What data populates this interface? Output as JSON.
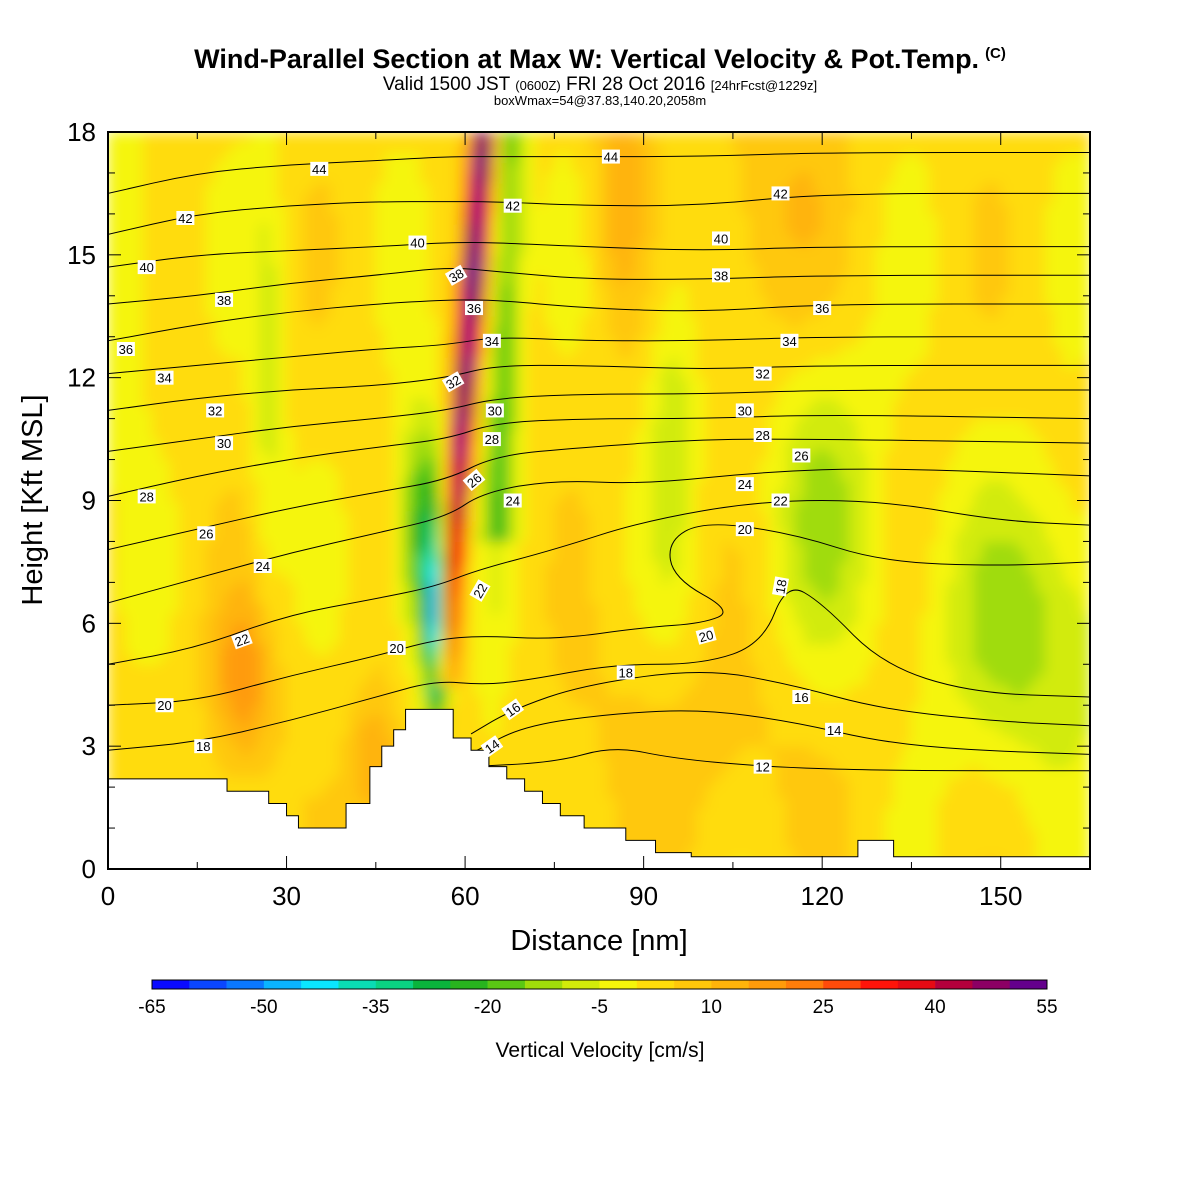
{
  "header": {
    "title": "Wind-Parallel Section at Max W: Vertical Velocity & Pot.Temp.",
    "title_mark": "(C)",
    "valid_prefix": "Valid 1500 JST",
    "valid_zulu": "(0600Z)",
    "valid_date": "FRI 28 Oct 2016",
    "forecast": "[24hrFcst@1229z]",
    "box_info": "boxWmax=54@37.83,140.20,2058m"
  },
  "chart_data": {
    "type": "heatmap",
    "xlabel": "Distance [nm]",
    "ylabel": "Height [Kft MSL]",
    "xlim": [
      0,
      165
    ],
    "ylim": [
      0,
      18
    ],
    "x_ticks": [
      0,
      30,
      60,
      90,
      120,
      150
    ],
    "y_ticks": [
      0,
      3,
      6,
      9,
      12,
      15,
      18
    ],
    "colorbar": {
      "title": "Vertical Velocity [cm/s]",
      "min": -65,
      "max": 55,
      "step": 5,
      "labels": [
        -65,
        -50,
        -35,
        -20,
        -5,
        10,
        25,
        40,
        55
      ],
      "colors": [
        "#0a0aff",
        "#0a46ff",
        "#0a78ff",
        "#0ab4ff",
        "#0ae6ff",
        "#0adcb4",
        "#0ad282",
        "#0ab43c",
        "#28b41e",
        "#5ac814",
        "#a0dc0a",
        "#d2eb0a",
        "#f5f50a",
        "#ffdc0a",
        "#ffc80a",
        "#ffb40a",
        "#ff9b0a",
        "#ff7d0a",
        "#ff4b0a",
        "#ff140a",
        "#e60a14",
        "#b4003c",
        "#8c0064",
        "#64008c"
      ]
    },
    "terrain": [
      [
        0,
        2.2
      ],
      [
        20,
        2.2
      ],
      [
        20,
        1.9
      ],
      [
        27,
        1.9
      ],
      [
        27,
        1.6
      ],
      [
        30,
        1.6
      ],
      [
        30,
        1.3
      ],
      [
        32,
        1.3
      ],
      [
        32,
        1.0
      ],
      [
        40,
        1.0
      ],
      [
        40,
        1.6
      ],
      [
        44,
        1.6
      ],
      [
        44,
        2.5
      ],
      [
        46,
        2.5
      ],
      [
        46,
        3.0
      ],
      [
        48,
        3.0
      ],
      [
        48,
        3.4
      ],
      [
        50,
        3.4
      ],
      [
        50,
        3.9
      ],
      [
        58,
        3.9
      ],
      [
        58,
        3.2
      ],
      [
        61,
        3.2
      ],
      [
        61,
        2.9
      ],
      [
        64,
        2.9
      ],
      [
        64,
        2.5
      ],
      [
        67,
        2.5
      ],
      [
        67,
        2.2
      ],
      [
        70,
        2.2
      ],
      [
        70,
        1.9
      ],
      [
        73,
        1.9
      ],
      [
        73,
        1.6
      ],
      [
        76,
        1.6
      ],
      [
        76,
        1.3
      ],
      [
        80,
        1.3
      ],
      [
        80,
        1.0
      ],
      [
        87,
        1.0
      ],
      [
        87,
        0.7
      ],
      [
        92,
        0.7
      ],
      [
        92,
        0.4
      ],
      [
        98,
        0.4
      ],
      [
        98,
        0.3
      ],
      [
        126,
        0.3
      ],
      [
        126,
        0.7
      ],
      [
        132,
        0.7
      ],
      [
        132,
        0.3
      ],
      [
        165,
        0.3
      ]
    ],
    "theta_contours": [
      {
        "label": "12",
        "points": [
          [
            45,
            2.3
          ],
          [
            60,
            2.5
          ],
          [
            75,
            2.6
          ],
          [
            85,
            3.0
          ],
          [
            95,
            2.7
          ],
          [
            110,
            2.5
          ],
          [
            130,
            2.4
          ],
          [
            165,
            2.4
          ]
        ]
      },
      {
        "label": "14",
        "points": [
          [
            62,
            2.9
          ],
          [
            70,
            3.5
          ],
          [
            85,
            3.8
          ],
          [
            100,
            3.9
          ],
          [
            115,
            3.6
          ],
          [
            130,
            3.1
          ],
          [
            145,
            2.9
          ],
          [
            165,
            2.8
          ]
        ]
      },
      {
        "label": "16",
        "points": [
          [
            61,
            3.3
          ],
          [
            68,
            3.9
          ],
          [
            80,
            4.5
          ],
          [
            100,
            4.9
          ],
          [
            115,
            4.5
          ],
          [
            130,
            3.9
          ],
          [
            150,
            3.6
          ],
          [
            165,
            3.5
          ]
        ]
      },
      {
        "label": "18",
        "points": [
          [
            0,
            2.9
          ],
          [
            15,
            3.1
          ],
          [
            30,
            3.6
          ],
          [
            45,
            4.2
          ],
          [
            55,
            4.6
          ],
          [
            63,
            4.5
          ],
          [
            70,
            4.6
          ],
          [
            85,
            5.0
          ],
          [
            100,
            5.0
          ],
          [
            110,
            5.5
          ],
          [
            114,
            7.0
          ],
          [
            120,
            6.5
          ],
          [
            130,
            5.0
          ],
          [
            145,
            4.3
          ],
          [
            165,
            4.2
          ]
        ]
      },
      {
        "label": "20",
        "points": [
          [
            0,
            4.0
          ],
          [
            15,
            4.1
          ],
          [
            30,
            4.7
          ],
          [
            45,
            5.2
          ],
          [
            55,
            5.6
          ],
          [
            63,
            5.7
          ],
          [
            75,
            5.6
          ],
          [
            90,
            5.9
          ],
          [
            100,
            6.0
          ],
          [
            105,
            6.3
          ],
          [
            95,
            7.1
          ],
          [
            94,
            8.0
          ],
          [
            100,
            8.5
          ],
          [
            115,
            8.2
          ],
          [
            130,
            7.5
          ],
          [
            150,
            7.4
          ],
          [
            165,
            7.5
          ]
        ]
      },
      {
        "label": "22",
        "points": [
          [
            0,
            5.0
          ],
          [
            15,
            5.4
          ],
          [
            30,
            6.2
          ],
          [
            45,
            6.6
          ],
          [
            55,
            6.9
          ],
          [
            62,
            7.3
          ],
          [
            75,
            7.8
          ],
          [
            90,
            8.5
          ],
          [
            110,
            9.0
          ],
          [
            130,
            9.0
          ],
          [
            150,
            8.5
          ],
          [
            165,
            8.4
          ]
        ]
      },
      {
        "label": "24",
        "points": [
          [
            0,
            6.5
          ],
          [
            15,
            7.1
          ],
          [
            30,
            7.7
          ],
          [
            45,
            8.2
          ],
          [
            57,
            8.6
          ],
          [
            63,
            9.2
          ],
          [
            75,
            9.5
          ],
          [
            90,
            9.4
          ],
          [
            110,
            9.7
          ],
          [
            130,
            9.8
          ],
          [
            165,
            9.6
          ]
        ]
      },
      {
        "label": "26",
        "points": [
          [
            0,
            7.8
          ],
          [
            15,
            8.3
          ],
          [
            30,
            8.8
          ],
          [
            45,
            9.2
          ],
          [
            57,
            9.5
          ],
          [
            65,
            10.1
          ],
          [
            80,
            10.3
          ],
          [
            100,
            10.5
          ],
          [
            120,
            10.5
          ],
          [
            165,
            10.4
          ]
        ]
      },
      {
        "label": "28",
        "points": [
          [
            0,
            9.1
          ],
          [
            15,
            9.6
          ],
          [
            30,
            10.0
          ],
          [
            45,
            10.3
          ],
          [
            57,
            10.5
          ],
          [
            65,
            10.9
          ],
          [
            80,
            11.0
          ],
          [
            100,
            11.0
          ],
          [
            120,
            11.1
          ],
          [
            165,
            11.0
          ]
        ]
      },
      {
        "label": "30",
        "points": [
          [
            0,
            10.2
          ],
          [
            15,
            10.5
          ],
          [
            30,
            10.8
          ],
          [
            45,
            11.0
          ],
          [
            57,
            11.2
          ],
          [
            65,
            11.5
          ],
          [
            80,
            11.6
          ],
          [
            100,
            11.6
          ],
          [
            120,
            11.7
          ],
          [
            165,
            11.7
          ]
        ]
      },
      {
        "label": "32",
        "points": [
          [
            0,
            11.2
          ],
          [
            15,
            11.5
          ],
          [
            30,
            11.7
          ],
          [
            45,
            11.8
          ],
          [
            57,
            12.0
          ],
          [
            65,
            12.3
          ],
          [
            80,
            12.3
          ],
          [
            100,
            12.2
          ],
          [
            120,
            12.3
          ],
          [
            165,
            12.3
          ]
        ]
      },
      {
        "label": "34",
        "points": [
          [
            0,
            12.1
          ],
          [
            15,
            12.3
          ],
          [
            30,
            12.5
          ],
          [
            45,
            12.7
          ],
          [
            57,
            12.8
          ],
          [
            65,
            13.0
          ],
          [
            80,
            12.9
          ],
          [
            100,
            12.9
          ],
          [
            120,
            13.0
          ],
          [
            165,
            13.0
          ]
        ]
      },
      {
        "label": "36",
        "points": [
          [
            0,
            12.9
          ],
          [
            15,
            13.3
          ],
          [
            30,
            13.6
          ],
          [
            45,
            13.8
          ],
          [
            57,
            13.9
          ],
          [
            65,
            13.9
          ],
          [
            80,
            13.7
          ],
          [
            100,
            13.6
          ],
          [
            120,
            13.8
          ],
          [
            165,
            13.8
          ]
        ]
      },
      {
        "label": "38",
        "points": [
          [
            0,
            13.8
          ],
          [
            15,
            14.0
          ],
          [
            30,
            14.3
          ],
          [
            45,
            14.5
          ],
          [
            57,
            14.7
          ],
          [
            65,
            14.6
          ],
          [
            80,
            14.4
          ],
          [
            100,
            14.4
          ],
          [
            120,
            14.5
          ],
          [
            165,
            14.5
          ]
        ]
      },
      {
        "label": "40",
        "points": [
          [
            0,
            14.7
          ],
          [
            15,
            15.0
          ],
          [
            30,
            15.1
          ],
          [
            45,
            15.2
          ],
          [
            57,
            15.3
          ],
          [
            65,
            15.3
          ],
          [
            80,
            15.2
          ],
          [
            100,
            15.1
          ],
          [
            120,
            15.2
          ],
          [
            165,
            15.2
          ]
        ]
      },
      {
        "label": "42",
        "points": [
          [
            0,
            15.5
          ],
          [
            15,
            16.0
          ],
          [
            30,
            16.2
          ],
          [
            45,
            16.3
          ],
          [
            57,
            16.3
          ],
          [
            65,
            16.3
          ],
          [
            80,
            16.2
          ],
          [
            100,
            16.2
          ],
          [
            120,
            16.5
          ],
          [
            165,
            16.5
          ]
        ]
      },
      {
        "label": "44",
        "points": [
          [
            0,
            16.5
          ],
          [
            15,
            17.0
          ],
          [
            30,
            17.2
          ],
          [
            45,
            17.3
          ],
          [
            57,
            17.4
          ],
          [
            65,
            17.4
          ],
          [
            80,
            17.4
          ],
          [
            100,
            17.4
          ],
          [
            120,
            17.5
          ],
          [
            165,
            17.5
          ]
        ]
      }
    ],
    "contour_labels": [
      {
        "text": "44",
        "x": 35.5,
        "y": 17.1,
        "rot": 0
      },
      {
        "text": "44",
        "x": 84.5,
        "y": 17.4,
        "rot": 0
      },
      {
        "text": "42",
        "x": 13,
        "y": 15.9,
        "rot": 0
      },
      {
        "text": "42",
        "x": 68,
        "y": 16.2,
        "rot": 0
      },
      {
        "text": "42",
        "x": 113,
        "y": 16.5,
        "rot": 0
      },
      {
        "text": "40",
        "x": 6.5,
        "y": 14.7,
        "rot": 0
      },
      {
        "text": "40",
        "x": 52,
        "y": 15.3,
        "rot": 0
      },
      {
        "text": "40",
        "x": 103,
        "y": 15.4,
        "rot": 0
      },
      {
        "text": "38",
        "x": 19.5,
        "y": 13.9,
        "rot": 0
      },
      {
        "text": "38",
        "x": 58.5,
        "y": 14.5,
        "rot": -30
      },
      {
        "text": "38",
        "x": 103,
        "y": 14.5,
        "rot": 0
      },
      {
        "text": "36",
        "x": 3,
        "y": 12.7,
        "rot": 0
      },
      {
        "text": "36",
        "x": 61.5,
        "y": 13.7,
        "rot": 0
      },
      {
        "text": "36",
        "x": 120,
        "y": 13.7,
        "rot": 0
      },
      {
        "text": "34",
        "x": 9.5,
        "y": 12.0,
        "rot": 0
      },
      {
        "text": "34",
        "x": 64.5,
        "y": 12.9,
        "rot": 0
      },
      {
        "text": "34",
        "x": 114.5,
        "y": 12.9,
        "rot": 0
      },
      {
        "text": "32",
        "x": 18,
        "y": 11.2,
        "rot": 0
      },
      {
        "text": "32",
        "x": 58,
        "y": 11.9,
        "rot": -30
      },
      {
        "text": "32",
        "x": 110,
        "y": 12.1,
        "rot": 0
      },
      {
        "text": "30",
        "x": 19.5,
        "y": 10.4,
        "rot": 0
      },
      {
        "text": "30",
        "x": 65,
        "y": 11.2,
        "rot": 0
      },
      {
        "text": "30",
        "x": 107,
        "y": 11.2,
        "rot": 0
      },
      {
        "text": "28",
        "x": 6.5,
        "y": 9.1,
        "rot": 0
      },
      {
        "text": "28",
        "x": 64.5,
        "y": 10.5,
        "rot": 0
      },
      {
        "text": "28",
        "x": 110,
        "y": 10.6,
        "rot": 0
      },
      {
        "text": "26",
        "x": 16.5,
        "y": 8.2,
        "rot": 0
      },
      {
        "text": "26",
        "x": 61.5,
        "y": 9.5,
        "rot": -40
      },
      {
        "text": "26",
        "x": 116.5,
        "y": 10.1,
        "rot": 0
      },
      {
        "text": "24",
        "x": 26,
        "y": 7.4,
        "rot": 0
      },
      {
        "text": "24",
        "x": 68,
        "y": 9.0,
        "rot": 0
      },
      {
        "text": "24",
        "x": 107,
        "y": 9.4,
        "rot": 0
      },
      {
        "text": "22",
        "x": 22.5,
        "y": 5.6,
        "rot": -20
      },
      {
        "text": "22",
        "x": 113,
        "y": 9.0,
        "rot": 0
      },
      {
        "text": "22",
        "x": 62.5,
        "y": 6.8,
        "rot": -60
      },
      {
        "text": "20",
        "x": 9.5,
        "y": 4.0,
        "rot": 0
      },
      {
        "text": "20",
        "x": 48.5,
        "y": 5.4,
        "rot": 0
      },
      {
        "text": "20",
        "x": 107,
        "y": 8.3,
        "rot": 0
      },
      {
        "text": "20",
        "x": 100.5,
        "y": 5.7,
        "rot": -15
      },
      {
        "text": "18",
        "x": 16,
        "y": 3.0,
        "rot": 0
      },
      {
        "text": "18",
        "x": 87,
        "y": 4.8,
        "rot": 0
      },
      {
        "text": "18",
        "x": 113,
        "y": 6.9,
        "rot": -80
      },
      {
        "text": "16",
        "x": 68,
        "y": 3.9,
        "rot": -35
      },
      {
        "text": "16",
        "x": 116.5,
        "y": 4.2,
        "rot": 0
      },
      {
        "text": "14",
        "x": 64.5,
        "y": 3.0,
        "rot": -35
      },
      {
        "text": "14",
        "x": 122,
        "y": 3.4,
        "rot": 0
      },
      {
        "text": "12",
        "x": 110,
        "y": 2.5,
        "rot": 0
      }
    ]
  }
}
